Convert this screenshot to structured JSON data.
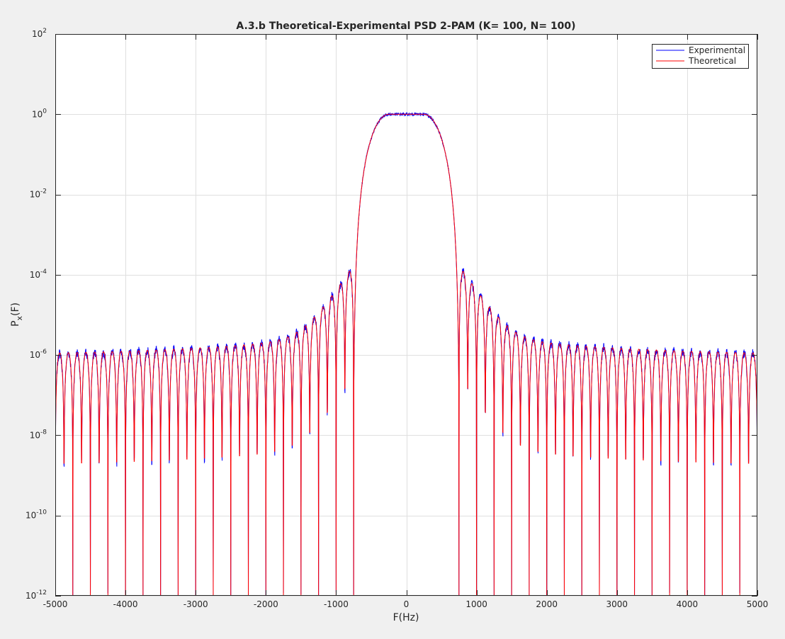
{
  "figure": {
    "background": "#f0f0f0"
  },
  "chart_data": {
    "type": "line",
    "title": "A.3.b Theoretical-Experimental PSD 2-PAM (K= 100, N= 100)",
    "xlabel": "F(Hz)",
    "ylabel_main": "P",
    "ylabel_sub": "x",
    "ylabel_tail": "(F)",
    "xlim": [
      -5000,
      5000
    ],
    "ylim": [
      1e-12,
      100
    ],
    "yscale": "log",
    "grid": true,
    "legend_position": "top-right",
    "x_ticks": [
      -5000,
      -4000,
      -3000,
      -2000,
      -1000,
      0,
      1000,
      2000,
      3000,
      4000,
      5000
    ],
    "x_tick_labels": [
      "-5000",
      "-4000",
      "-3000",
      "-2000",
      "-1000",
      "0",
      "1000",
      "2000",
      "3000",
      "4000",
      "5000"
    ],
    "y_ticks": [
      {
        "base": "10",
        "exp": "2"
      },
      {
        "base": "10",
        "exp": "0"
      },
      {
        "base": "10",
        "exp": "-2"
      },
      {
        "base": "10",
        "exp": "-4"
      },
      {
        "base": "10",
        "exp": "-6"
      },
      {
        "base": "10",
        "exp": "-8"
      },
      {
        "base": "10",
        "exp": "-10"
      },
      {
        "base": "10",
        "exp": "-12"
      }
    ],
    "y_tick_values": [
      100,
      1,
      0.01,
      0.0001,
      1e-06,
      1e-08,
      1e-10,
      1e-12
    ],
    "series": [
      {
        "name": "Experimental",
        "color": "#0000ff",
        "kind": "square-root raised-cosine PSD estimate (noisy)"
      },
      {
        "name": "Theoretical",
        "color": "#ff0000",
        "kind": "square-root raised-cosine PSD"
      }
    ],
    "passband": {
      "flat_edge_hz": 250,
      "rolloff_edge_hz": 750,
      "peak_value": 1
    },
    "sidelobe_level": 1e-06,
    "null_spacing_hz": 125
  }
}
